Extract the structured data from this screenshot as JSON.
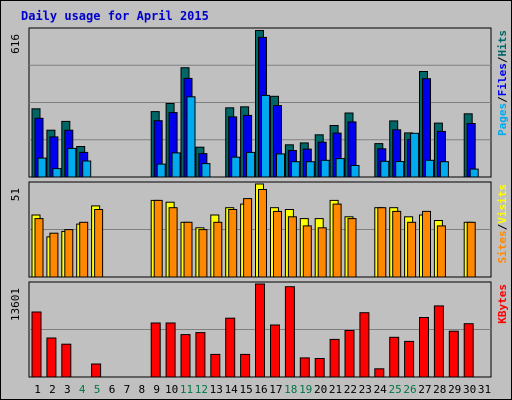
{
  "chart_data": {
    "type": "bar",
    "title": "Daily usage for April 2015",
    "categories": [
      "1",
      "2",
      "3",
      "4",
      "5",
      "6",
      "7",
      "8",
      "9",
      "10",
      "11",
      "12",
      "13",
      "14",
      "15",
      "16",
      "17",
      "18",
      "19",
      "20",
      "21",
      "22",
      "23",
      "24",
      "25",
      "26",
      "27",
      "28",
      "29",
      "30",
      "31"
    ],
    "weekend_days": [
      4,
      5,
      11,
      12,
      18,
      19,
      25,
      26
    ],
    "colors": {
      "hits": "#006666",
      "files": "#0000ee",
      "pages": "#00aaee",
      "visits": "#ffff00",
      "sites": "#ff8800",
      "kbytes": "#ff0000",
      "day_label": "#000000",
      "weekend_label": "#007744",
      "title": "#0000cc",
      "background": "#c0c0c0"
    },
    "panels": [
      {
        "name": "requests",
        "ymax_label": "616",
        "ymax": 616,
        "legend": [
          {
            "text": "Pages",
            "color": "#00aaee"
          },
          {
            "text": "/",
            "color": "#000000"
          },
          {
            "text": "Files",
            "color": "#0000ee"
          },
          {
            "text": "/",
            "color": "#000000"
          },
          {
            "text": "Hits",
            "color": "#006666"
          }
        ],
        "series": [
          {
            "name": "Hits",
            "color": "#006666",
            "values": [
              286,
              196,
              233,
              128,
              0,
              0,
              0,
              0,
              274,
              308,
              458,
              125,
              0,
              290,
              294,
              614,
              338,
              135,
              143,
              177,
              216,
              268,
              0,
              140,
              235,
              185,
              442,
              226,
              0,
              265,
              0
            ]
          },
          {
            "name": "Files",
            "color": "#0000ee",
            "values": [
              246,
              168,
              196,
              103,
              0,
              0,
              0,
              0,
              236,
              270,
              413,
              98,
              0,
              252,
              258,
              585,
              299,
              111,
              117,
              146,
              184,
              231,
              0,
              118,
              198,
              157,
              412,
              191,
              0,
              224,
              0
            ]
          },
          {
            "name": "Pages",
            "color": "#00aaee",
            "values": [
              79,
              35,
              120,
              67,
              0,
              0,
              0,
              0,
              54,
              101,
              336,
              56,
              0,
              83,
              103,
              342,
              97,
              64,
              64,
              70,
              77,
              48,
              0,
              66,
              65,
              183,
              70,
              64,
              0,
              33,
              0
            ]
          }
        ]
      },
      {
        "name": "visitors",
        "ymax_label": "51",
        "ymax": 51,
        "legend": [
          {
            "text": "Sites",
            "color": "#ff8800"
          },
          {
            "text": "/",
            "color": "#000000"
          },
          {
            "text": "Visits",
            "color": "#ffff00"
          }
        ],
        "series": [
          {
            "name": "Visits",
            "color": "#ffff00",
            "values": [
              34,
              22,
              25,
              29,
              39,
              0,
              0,
              0,
              42,
              41,
              30,
              27,
              34,
              38,
              40,
              51,
              38,
              37,
              32,
              32,
              42,
              33,
              0,
              38,
              38,
              33,
              34,
              31,
              0,
              30,
              0
            ]
          },
          {
            "name": "Sites",
            "color": "#ff8800",
            "values": [
              32,
              24,
              26,
              30,
              37,
              0,
              0,
              0,
              42,
              38,
              30,
              26,
              30,
              37,
              43,
              48,
              36,
              33,
              28,
              27,
              40,
              32,
              0,
              38,
              36,
              30,
              36,
              28,
              0,
              30,
              0
            ]
          }
        ]
      },
      {
        "name": "kbytes",
        "ymax_label": "13601",
        "ymax": 13601,
        "legend": [
          {
            "text": "KBytes",
            "color": "#ff0000"
          }
        ],
        "series": [
          {
            "name": "KBytes",
            "color": "#ff0000",
            "values": [
              9500,
              5700,
              4800,
              0,
              1900,
              0,
              0,
              0,
              7900,
              7900,
              6200,
              6500,
              3300,
              8600,
              3300,
              13601,
              7600,
              13200,
              2800,
              2700,
              5500,
              6800,
              9400,
              1200,
              5800,
              5200,
              8700,
              10400,
              6700,
              7800,
              0
            ]
          }
        ]
      }
    ]
  }
}
